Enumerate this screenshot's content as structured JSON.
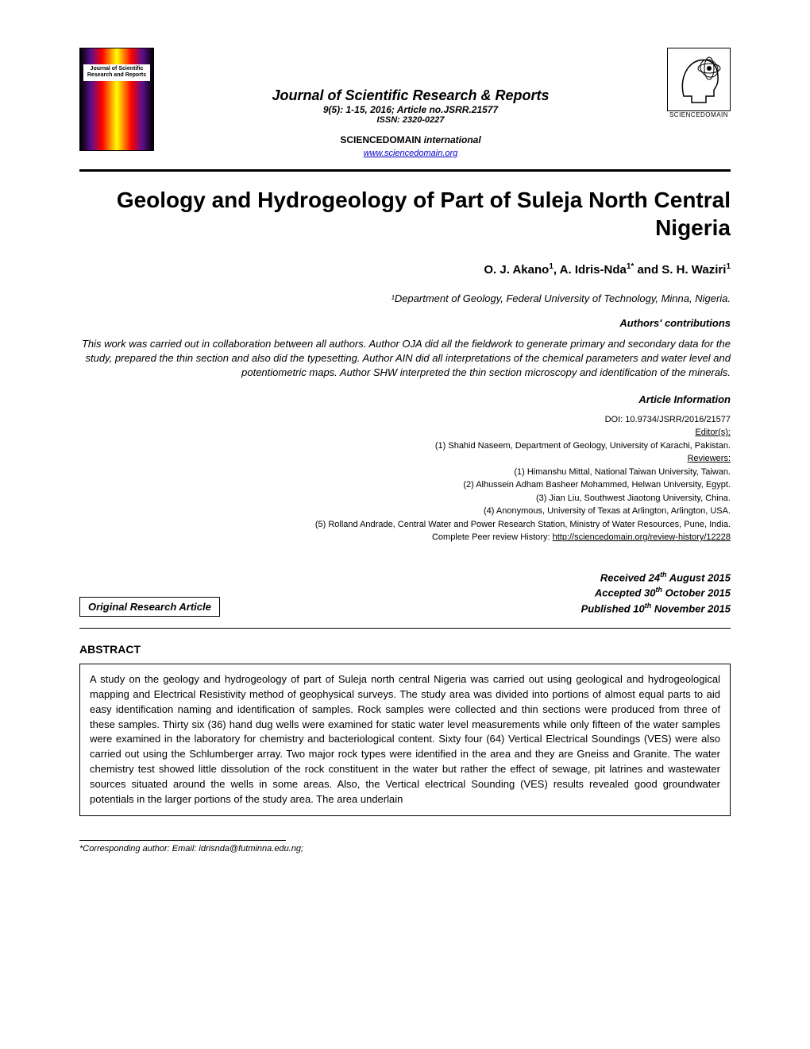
{
  "cover_label": "Journal of Scientific Research and Reports",
  "journal": {
    "name": "Journal of Scientific Research & Reports",
    "issue": "9(5): 1-15, 2016; Article no.JSRR.21577",
    "issn": "ISSN: 2320-0227",
    "publisher": "SCIENCEDOMAIN",
    "publisher_suffix": "international",
    "url": "www.sciencedomain.org"
  },
  "logo_caption": "SCIENCEDOMAIN",
  "title": "Geology and Hydrogeology of Part of Suleja North Central Nigeria",
  "authors_html": "O. J. Akano<sup>1</sup>, A. Idris-Nda<sup>1*</sup> and S. H. Waziri<sup>1</sup>",
  "affiliation": "¹Department of Geology, Federal University of Technology, Minna, Nigeria.",
  "contributions_head": "Authors' contributions",
  "contributions": "This work was carried out in collaboration between all authors. Author OJA did all the fieldwork to generate primary and secondary data for the study, prepared the thin section and also did the typesetting. Author AIN did all interpretations of the chemical parameters and water level and potentiometric maps. Author SHW interpreted the thin section microscopy and identification of the minerals.",
  "article_info_head": "Article Information",
  "article_info": {
    "doi": "DOI: 10.9734/JSRR/2016/21577",
    "editors_label": "Editor(s):",
    "editors": "(1) Shahid Naseem, Department of Geology, University of Karachi, Pakistan.",
    "reviewers_label": "Reviewers:",
    "reviewers": [
      "(1) Himanshu Mittal, National Taiwan University, Taiwan.",
      "(2) Alhussein Adham Basheer Mohammed, Helwan University, Egypt.",
      "(3) Jian Liu, Southwest Jiaotong University, China.",
      "(4) Anonymous, University of Texas at Arlington, Arlington, USA.",
      "(5) Rolland Andrade, Central Water and Power Research Station, Ministry of Water Resources, Pune, India."
    ],
    "peer_review_label": "Complete Peer review History:",
    "peer_review_url": "http://sciencedomain.org/review-history/12228"
  },
  "article_type": "Original Research Article",
  "dates": {
    "received": "Received 24<sup>th</sup> August 2015",
    "accepted": "Accepted 30<sup>th</sup> October 2015",
    "published": "Published 10<sup>th</sup> November 2015"
  },
  "abstract_head": "ABSTRACT",
  "abstract": "A study on the geology and hydrogeology of part of Suleja north central Nigeria was carried out using geological and hydrogeological mapping and Electrical Resistivity method of geophysical surveys. The study area was divided into portions of almost equal parts to aid easy identification naming and identification of samples. Rock samples were collected and thin sections were produced from three of these samples. Thirty six (36) hand dug wells were examined for static water level measurements while only fifteen of the water samples were examined in the laboratory for chemistry and bacteriological content. Sixty four (64) Vertical Electrical Soundings (VES) were also carried out using the Schlumberger array. Two major rock types were identified in the area and they are Gneiss and Granite. The water chemistry test showed little dissolution of the rock constituent in the water but rather the effect of sewage, pit latrines and wastewater sources situated around the wells in some areas. Also, the Vertical electrical Sounding (VES) results revealed good groundwater potentials in the larger portions of the study area. The area underlain",
  "corresponding": "*Corresponding author: Email: idrisnda@futminna.edu.ng;"
}
